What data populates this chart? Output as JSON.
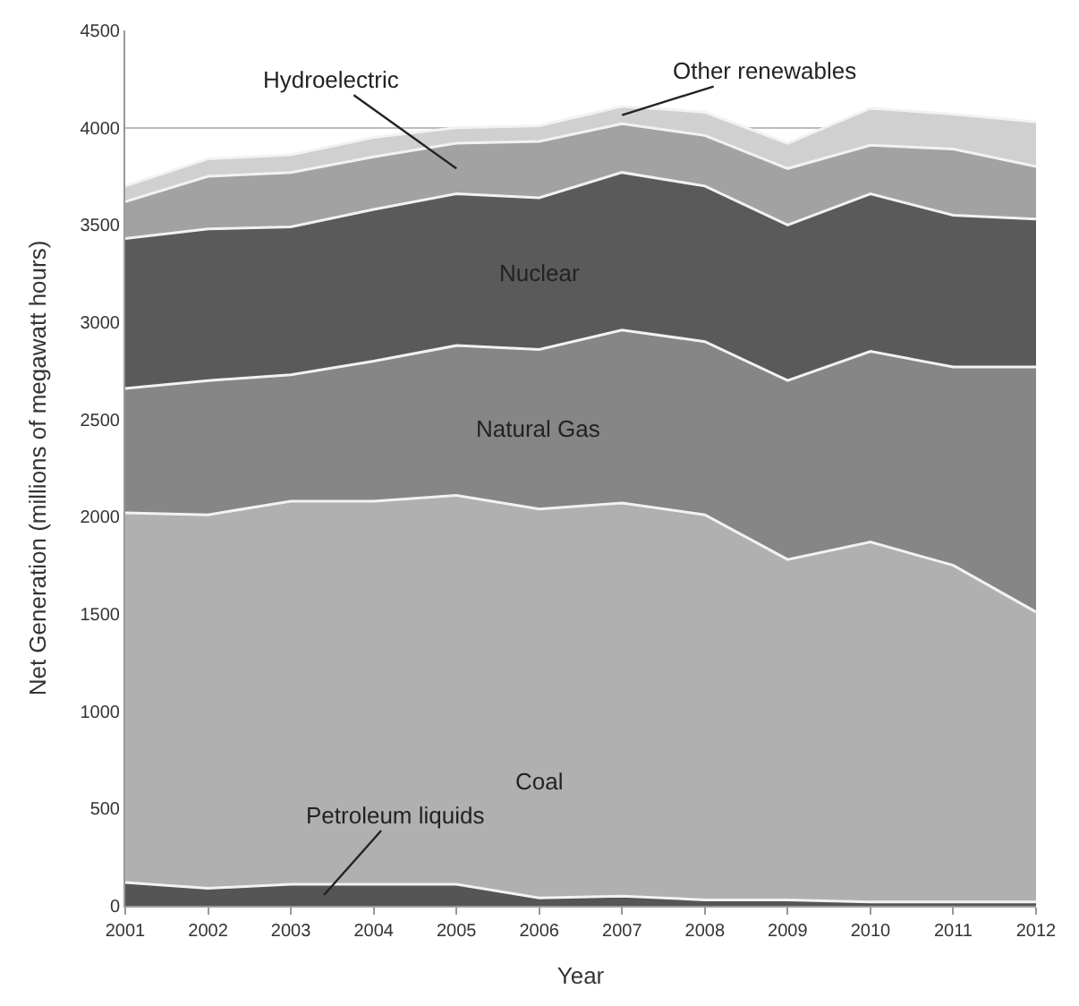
{
  "chart_data": {
    "type": "area",
    "stacked": true,
    "xlabel": "Year",
    "ylabel": "Net Generation (millions of megawatt hours)",
    "x": [
      2001,
      2002,
      2003,
      2004,
      2005,
      2006,
      2007,
      2008,
      2009,
      2010,
      2011,
      2012
    ],
    "series": [
      {
        "name": "Petroleum liquids",
        "color": "#555555",
        "values": [
          120,
          90,
          110,
          110,
          110,
          40,
          50,
          30,
          30,
          20,
          20,
          20
        ]
      },
      {
        "name": "Coal",
        "color": "#b0b0b0",
        "values": [
          1900,
          1920,
          1970,
          1970,
          2000,
          2000,
          2020,
          1980,
          1750,
          1850,
          1730,
          1490
        ]
      },
      {
        "name": "Natural Gas",
        "color": "#868686",
        "values": [
          640,
          690,
          650,
          720,
          770,
          820,
          890,
          890,
          920,
          980,
          1020,
          1260
        ]
      },
      {
        "name": "Nuclear",
        "color": "#5a5a5a",
        "values": [
          770,
          780,
          760,
          780,
          780,
          780,
          810,
          800,
          800,
          810,
          780,
          760
        ]
      },
      {
        "name": "Hydroelectric",
        "color": "#a2a2a2",
        "values": [
          190,
          270,
          280,
          270,
          260,
          290,
          250,
          260,
          290,
          250,
          340,
          270
        ]
      },
      {
        "name": "Other renewables",
        "color": "#d0d0d0",
        "values": [
          80,
          90,
          90,
          100,
          80,
          80,
          90,
          120,
          130,
          190,
          180,
          230
        ]
      }
    ],
    "xlim": [
      2001,
      2012
    ],
    "xticks": [
      2001,
      2002,
      2003,
      2004,
      2005,
      2006,
      2007,
      2008,
      2009,
      2010,
      2011,
      2012
    ],
    "ylim": [
      0,
      4500
    ],
    "yticks": [
      0,
      500,
      1000,
      1500,
      2000,
      2500,
      3000,
      3500,
      4000,
      4500
    ],
    "grid": "y",
    "legend": false
  }
}
